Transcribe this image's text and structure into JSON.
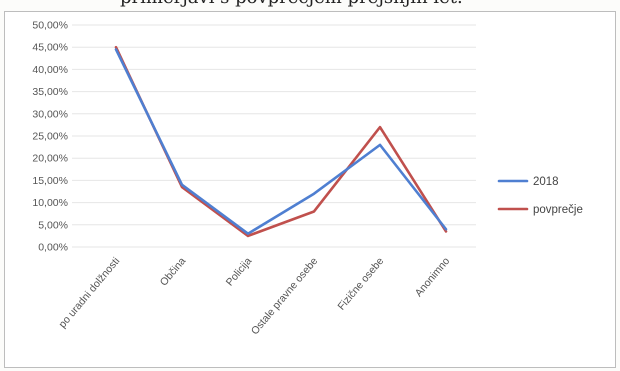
{
  "page": {
    "top_text": "primerjavi s povprečjem prejšnjih let."
  },
  "chart_data": {
    "type": "line",
    "title": "",
    "xlabel": "",
    "ylabel": "",
    "categories": [
      "po uradni dolžnosti",
      "Občina",
      "Policija",
      "Ostale pravne osebe",
      "Fizične osebe",
      "Anonimno"
    ],
    "ylim": [
      0,
      50
    ],
    "yticks": [
      0,
      5,
      10,
      15,
      20,
      25,
      30,
      35,
      40,
      45,
      50
    ],
    "ytick_labels": [
      "0,00%",
      "5,00%",
      "10,00%",
      "15,00%",
      "20,00%",
      "25,00%",
      "30,00%",
      "35,00%",
      "40,00%",
      "45,00%",
      "50,00%"
    ],
    "grid": true,
    "legend_position": "right",
    "series": [
      {
        "name": "2018",
        "color": "#4f7fd1",
        "values": [
          44.5,
          14,
          3,
          12,
          23,
          4
        ]
      },
      {
        "name": "povprečje",
        "color": "#c0504d",
        "values": [
          45,
          13.5,
          2.5,
          8,
          27,
          3.5
        ]
      }
    ]
  }
}
